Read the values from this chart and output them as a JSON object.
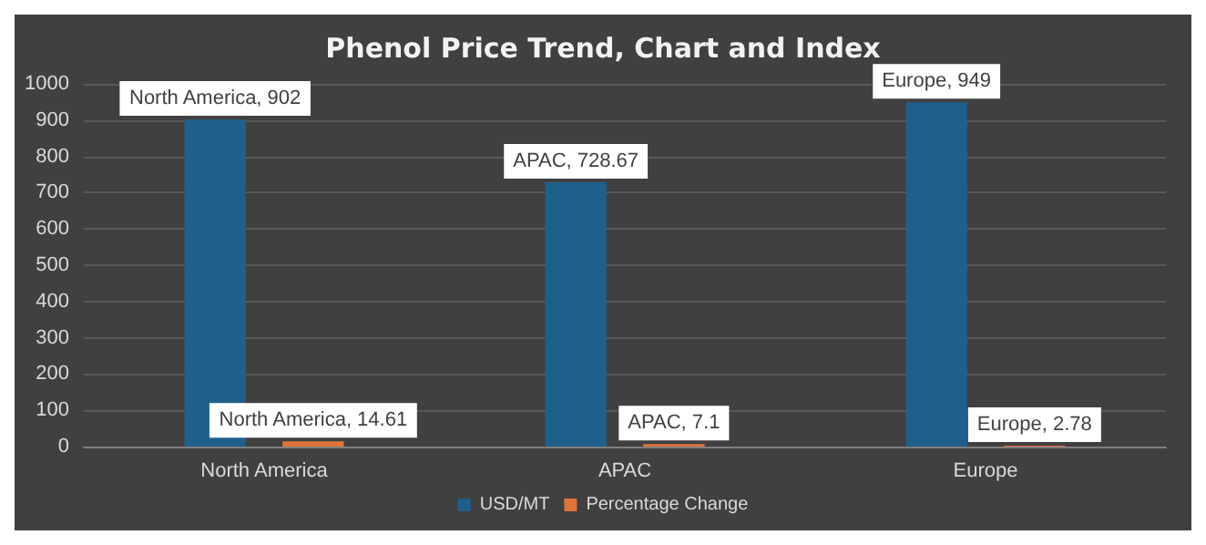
{
  "chart_data": {
    "type": "bar",
    "title": "Phenol Price Trend, Chart and Index",
    "categories": [
      "North America",
      "APAC",
      "Europe"
    ],
    "series": [
      {
        "name": "USD/MT",
        "color": "#1f5f8b",
        "values": [
          902,
          728.67,
          949
        ],
        "value_labels": [
          "North America, 902",
          "APAC, 728.67",
          "Europe, 949"
        ]
      },
      {
        "name": "Percentage Change",
        "color": "#e0733a",
        "values": [
          14.61,
          7.1,
          2.78
        ],
        "value_labels": [
          "North America, 14.61",
          "APAC, 7.1",
          "Europe, 2.78"
        ]
      }
    ],
    "ylim": [
      0,
      1000
    ],
    "yticks": [
      0,
      100,
      200,
      300,
      400,
      500,
      600,
      700,
      800,
      900,
      1000
    ],
    "grid": "y",
    "legend": "bottom"
  }
}
